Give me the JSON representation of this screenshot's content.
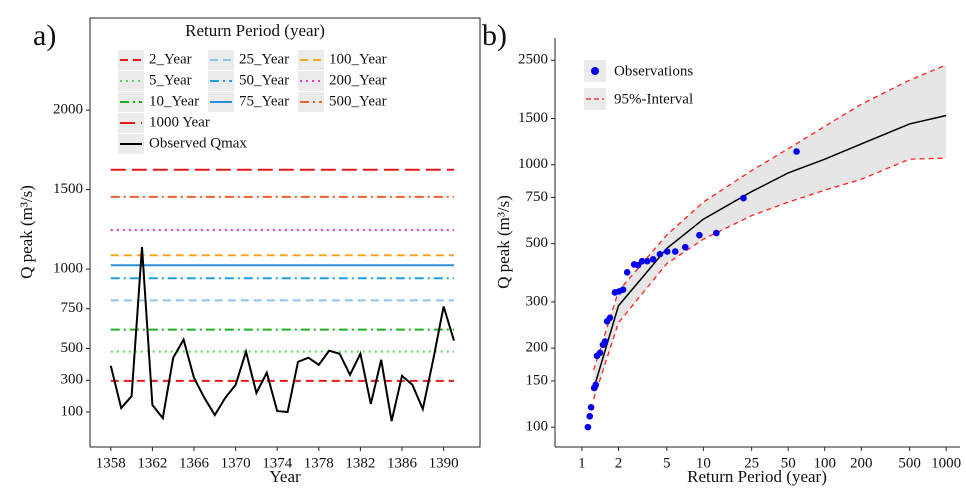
{
  "chart_data": [
    {
      "type": "line",
      "title": "a)",
      "legend_title": "Return Period (year)",
      "xlabel": "Year",
      "ylabel": "Q peak (m³/s)",
      "x": [
        1358,
        1359,
        1360,
        1361,
        1362,
        1363,
        1364,
        1365,
        1366,
        1367,
        1368,
        1369,
        1370,
        1371,
        1372,
        1373,
        1374,
        1375,
        1376,
        1377,
        1378,
        1379,
        1380,
        1381,
        1382,
        1383,
        1384,
        1385,
        1386,
        1387,
        1388,
        1389,
        1390,
        1391
      ],
      "series": [
        {
          "name": "Observed Qmax",
          "color": "#000000",
          "values": [
            391,
            125,
            200,
            1138,
            144,
            62,
            442,
            556,
            315,
            189,
            81,
            189,
            271,
            480,
            220,
            347,
            106,
            100,
            416,
            442,
            397,
            486,
            467,
            334,
            467,
            151,
            429,
            43,
            328,
            271,
            119,
            429,
            765,
            549
          ]
        }
      ],
      "reference_lines": [
        {
          "name": "2_Year",
          "color": "#e41a1c",
          "dash": "dashed",
          "value": 296
        },
        {
          "name": "5_Year",
          "color": "#5ad65a",
          "dash": "dotted",
          "value": 480
        },
        {
          "name": "10_Year",
          "color": "#1fb01f",
          "dash": "dashdot",
          "value": 619
        },
        {
          "name": "25_Year",
          "color": "#8ec5ee",
          "dash": "dashed",
          "value": 803
        },
        {
          "name": "50_Year",
          "color": "#1ea0e0",
          "dash": "dashdot",
          "value": 942
        },
        {
          "name": "75_Year",
          "color": "#2b8fd6",
          "dash": "solid",
          "value": 1024
        },
        {
          "name": "100_Year",
          "color": "#f5a623",
          "dash": "dashed",
          "value": 1087
        },
        {
          "name": "200_Year",
          "color": "#e040c0",
          "dash": "dotted",
          "value": 1246
        },
        {
          "name": "500_Year",
          "color": "#f0602a",
          "dash": "dashdot",
          "value": 1454
        },
        {
          "name": "1000  Year",
          "color": "#e31a1c",
          "dash": "longdash",
          "value": 1625
        }
      ],
      "xlim": [
        1356,
        1393.5
      ],
      "xticks": [
        1358,
        1362,
        1366,
        1370,
        1374,
        1378,
        1382,
        1386,
        1390
      ],
      "ylim": [
        -120,
        2580
      ],
      "yticks": [
        100,
        300,
        500,
        750,
        1000,
        1500,
        2000
      ]
    },
    {
      "type": "scatter",
      "title": "b)",
      "xlabel": "Return Period (year)",
      "ylabel": "Q peak (m³/s)",
      "xscale": "log",
      "yscale": "log",
      "series": [
        {
          "name": "Observations",
          "color": "#0000ee",
          "x": [
            1.12,
            1.16,
            1.19,
            1.26,
            1.3,
            1.33,
            1.41,
            1.49,
            1.55,
            1.61,
            1.7,
            1.87,
            2.02,
            2.18,
            2.36,
            2.69,
            2.9,
            3.13,
            3.45,
            3.86,
            4.39,
            5.04,
            5.87,
            7.1,
            9.28,
            12.8,
            21.4,
            58.6
          ],
          "values": [
            100,
            110,
            119,
            141,
            145,
            187,
            192,
            206,
            212,
            253,
            261,
            326,
            329,
            334,
            389,
            417,
            414,
            429,
            429,
            436,
            456,
            467,
            467,
            485,
            539,
            549,
            746,
            1123
          ]
        },
        {
          "name": "95%-Interval",
          "color": "#ff2020",
          "x": [
            1.25,
            2,
            5,
            10,
            25,
            50,
            100,
            200,
            500,
            1000
          ],
          "lower": [
            128,
            250,
            420,
            520,
            640,
            720,
            800,
            880,
            1050,
            1060
          ],
          "upper": [
            165,
            330,
            540,
            720,
            950,
            1150,
            1400,
            1700,
            2100,
            2400
          ]
        }
      ],
      "fit": {
        "color": "#000000",
        "x": [
          1.25,
          2,
          5,
          10,
          25,
          50,
          100,
          200,
          500,
          1000
        ],
        "values": [
          140,
          290,
          480,
          620,
          790,
          930,
          1050,
          1200,
          1430,
          1540
        ]
      },
      "xlim": [
        0.6,
        1300
      ],
      "xticks": [
        1,
        2,
        5,
        10,
        25,
        50,
        100,
        200,
        500,
        1000
      ],
      "ylim": [
        84,
        3040
      ],
      "yticks": [
        100,
        150,
        200,
        300,
        500,
        750,
        1000,
        1500,
        2500
      ]
    }
  ]
}
